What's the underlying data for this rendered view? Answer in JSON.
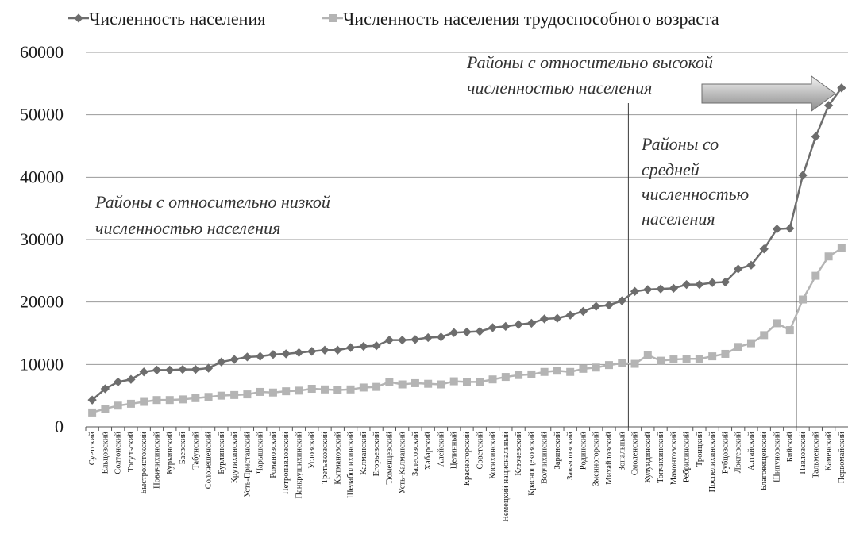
{
  "chart_data": {
    "type": "line",
    "title": "",
    "xlabel": "",
    "ylabel": "",
    "ylim": [
      0,
      60000
    ],
    "yticks": [
      0,
      10000,
      20000,
      30000,
      40000,
      50000,
      60000
    ],
    "grid": true,
    "legend_position": "top",
    "categories": [
      "Суетский",
      "Ельцовский",
      "Солтонский",
      "Тогульский",
      "Быстроистокский",
      "Новичихинский",
      "Курьинский",
      "Баевский",
      "Табунский",
      "Солонешенский",
      "Бурлинский",
      "Крутихинский",
      "Усть-Пристанский",
      "Чарышский",
      "Романовский",
      "Петропавловский",
      "Панкрушихинский",
      "Угловский",
      "Третьяковский",
      "Кытмановский",
      "Шелаболихинский",
      "Калманский",
      "Егорьевский",
      "Тюменцевский",
      "Усть-Калманский",
      "Залесовский",
      "Хабарский",
      "Алейский",
      "Целинный",
      "Красногорский",
      "Советский",
      "Косихинский",
      "Немецкий национальный",
      "Ключевский",
      "Краснощековский",
      "Волчихинский",
      "Заринский",
      "Завьяловский",
      "Родинский",
      "Змеиногорский",
      "Михайловский",
      "Зональный",
      "Смоленский",
      "Кулундинский",
      "Топчихинский",
      "Мамонтовский",
      "Ребрихинский",
      "Троицкий",
      "Поспелихинский",
      "Рубцовский",
      "Локтевский",
      "Алтайский",
      "Благовещенский",
      "Шипуновский",
      "Бийский",
      "Павловский",
      "Тальменский",
      "Каменский",
      "Первомайский"
    ],
    "series": [
      {
        "name": "Численность населения",
        "color": "#6d6d6d",
        "marker": "diamond",
        "values": [
          4300,
          6100,
          7200,
          7600,
          8800,
          9100,
          9100,
          9200,
          9200,
          9400,
          10400,
          10800,
          11200,
          11300,
          11600,
          11700,
          11900,
          12100,
          12300,
          12300,
          12700,
          12900,
          13000,
          13900,
          13900,
          14000,
          14300,
          14400,
          15100,
          15200,
          15300,
          15900,
          16100,
          16400,
          16600,
          17300,
          17400,
          17900,
          18500,
          19300,
          19500,
          20200,
          21700,
          22000,
          22100,
          22200,
          22800,
          22800,
          23100,
          23200,
          25300,
          25900,
          28500,
          31700,
          31800,
          40300,
          46500,
          51500,
          54300
        ]
      },
      {
        "name": "Численность населения трудоспособного возраста",
        "color": "#b4b4b4",
        "marker": "square",
        "values": [
          2300,
          2900,
          3400,
          3700,
          4000,
          4300,
          4300,
          4400,
          4600,
          4800,
          5000,
          5100,
          5200,
          5600,
          5500,
          5700,
          5800,
          6100,
          6000,
          5900,
          6000,
          6300,
          6400,
          7200,
          6800,
          7000,
          6900,
          6800,
          7300,
          7200,
          7200,
          7600,
          8000,
          8300,
          8400,
          8800,
          9000,
          8800,
          9300,
          9500,
          9900,
          10200,
          10100,
          11500,
          10600,
          10800,
          10900,
          10900,
          11300,
          11700,
          12800,
          13400,
          14700,
          16600,
          15500,
          20400,
          24200,
          27300,
          28600
        ]
      }
    ],
    "annotations": [
      {
        "lines": [
          "Районы с относительно низкой",
          "численностью населения"
        ]
      },
      {
        "lines": [
          "Районы со",
          "средней",
          "численностью",
          "населения"
        ]
      },
      {
        "lines": [
          "Районы с относительно высокой",
          "численностью населения"
        ]
      }
    ],
    "dividers_after": [
      "Зональный",
      "Бийский"
    ]
  }
}
